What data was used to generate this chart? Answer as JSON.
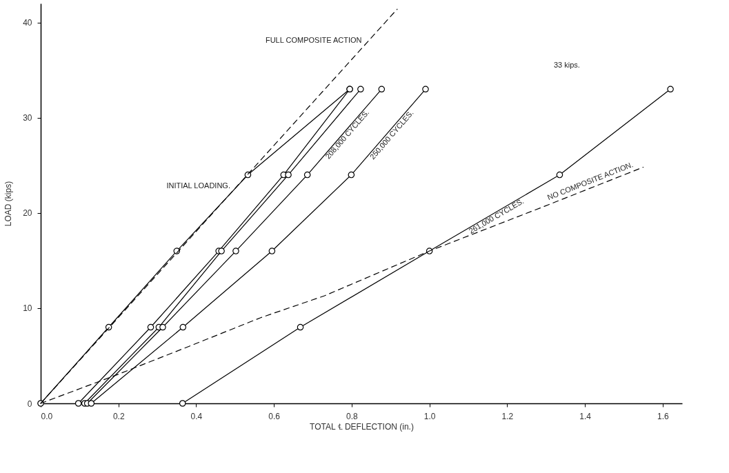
{
  "chart_data": {
    "type": "line",
    "xlabel": "TOTAL ℄ DEFLECTION (in.)",
    "ylabel": "LOAD (kips)",
    "xlim": [
      0,
      1.65
    ],
    "ylim": [
      0,
      42
    ],
    "xticks": [
      {
        "value": 0,
        "label": "0.0"
      },
      0.2,
      0.4,
      0.6,
      0.8,
      {
        "value": 1,
        "label": "1.0"
      },
      1.2,
      1.4,
      1.6
    ],
    "yticks": [
      0,
      10,
      20,
      30,
      40
    ],
    "grid": false,
    "marker": "circle",
    "line_style": "solid",
    "series": [
      {
        "name": "INITIAL LOADING.",
        "color": "#000000",
        "x": [
          0,
          0.175,
          0.35,
          0.533,
          0.795
        ],
        "values": [
          0,
          8,
          16,
          24,
          33
        ]
      },
      {
        "color": "#000000",
        "x": [
          0.097,
          0.283,
          0.458,
          0.625,
          0.795
        ],
        "values": [
          0,
          8,
          16,
          24,
          33
        ]
      },
      {
        "color": "#000000",
        "x": [
          0.113,
          0.304,
          0.465,
          0.637,
          0.823
        ],
        "values": [
          0,
          8,
          16,
          24,
          33
        ]
      },
      {
        "name": "208,000 CYCLES.",
        "color": "#000000",
        "x": [
          0.12,
          0.314,
          0.502,
          0.686,
          0.877
        ],
        "values": [
          0,
          8,
          16,
          24,
          33
        ]
      },
      {
        "name": "250,000 CYCLES.",
        "color": "#000000",
        "x": [
          0.13,
          0.366,
          0.595,
          0.799,
          0.99
        ],
        "values": [
          0,
          8,
          16,
          24,
          33
        ]
      },
      {
        "name": "261,000 CYCLES.",
        "color": "#000000",
        "x": [
          0.365,
          0.668,
          1.0,
          1.335,
          1.62
        ],
        "values": [
          0,
          8,
          16,
          24,
          33
        ]
      },
      {
        "name": "FULL COMPOSITE ACTION",
        "color": "#000000",
        "x": [
          0,
          0.917
        ],
        "values": [
          0,
          41.4
        ],
        "marker": "none",
        "line_style": "dashed"
      },
      {
        "name": "NO COMPOSITE ACTION.",
        "color": "#000000",
        "x": [
          0,
          0.196,
          0.37,
          0.566,
          0.73,
          1.0,
          1.29,
          1.55
        ],
        "values": [
          0,
          3.0,
          5.8,
          9.0,
          11.3,
          16,
          20.6,
          24.8
        ],
        "marker": "none",
        "line_style": "dashed"
      }
    ],
    "annotations": [
      "33 kips."
    ]
  }
}
